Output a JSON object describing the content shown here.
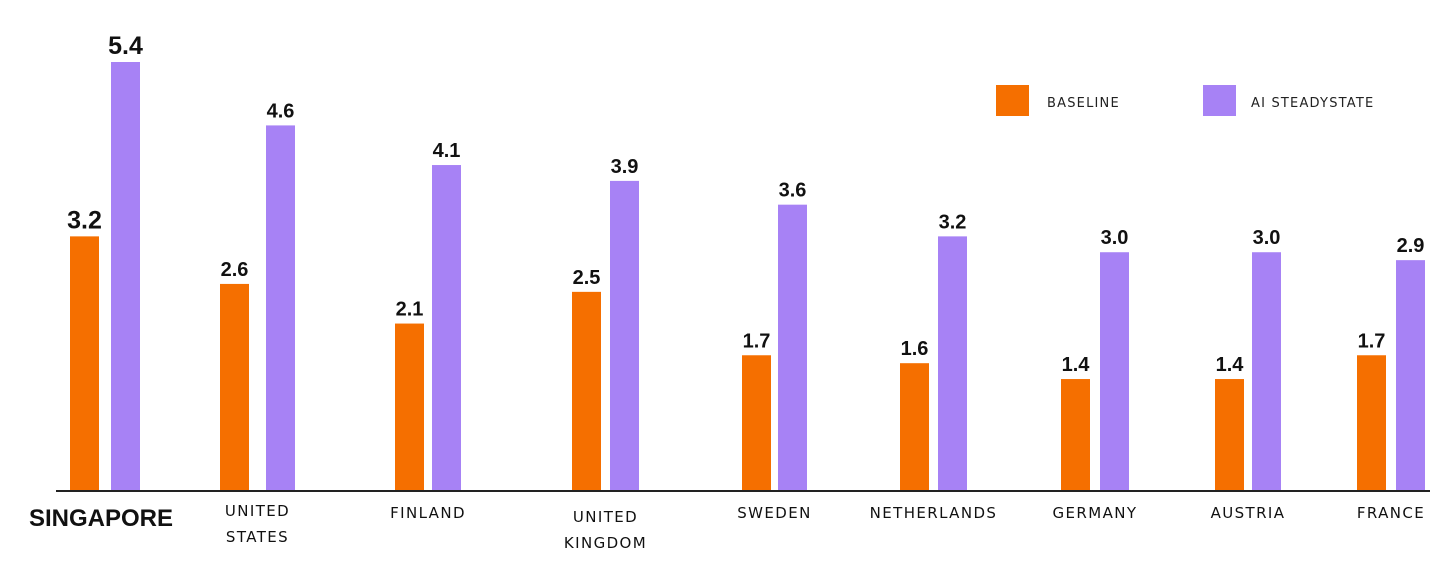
{
  "chart_data": {
    "type": "bar",
    "title": "",
    "xlabel": "",
    "ylabel": "",
    "ylim": [
      0,
      5.4
    ],
    "grid": false,
    "legend_position": "top-right",
    "categories": [
      "SINGAPORE",
      "UNITED STATES",
      "FINLAND",
      "UNITED KINGDOM",
      "SWEDEN",
      "NETHERLANDS",
      "GERMANY",
      "AUSTRIA",
      "FRANCE"
    ],
    "series": [
      {
        "name": "BASELINE",
        "color": "#f56f00",
        "values": [
          3.2,
          2.6,
          2.1,
          2.5,
          1.7,
          1.6,
          1.4,
          1.4,
          1.7
        ],
        "labels": [
          "3.2",
          "2.6",
          "2.1",
          "2.5",
          "1.7",
          "1.6",
          "1.4",
          "1.4",
          "1.7"
        ]
      },
      {
        "name": "AI STEADYSTATE",
        "color": "#a782f5",
        "values": [
          5.4,
          4.6,
          4.1,
          3.9,
          3.6,
          3.2,
          3.0,
          3.0,
          2.9
        ],
        "labels": [
          "5.4",
          "4.6",
          "4.1",
          "3.9",
          "3.6",
          "3.2",
          "3.0",
          "3.0",
          "2.9"
        ]
      }
    ]
  }
}
